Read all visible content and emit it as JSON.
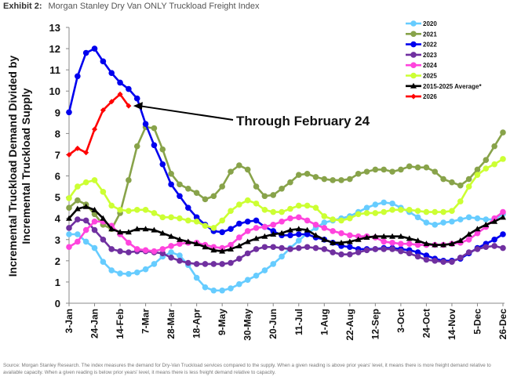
{
  "header": {
    "exhibit": "Exhibit 2:",
    "title": "Morgan Stanley Dry Van ONLY Truckload Freight Index"
  },
  "footer": {
    "source": "Source: Morgan Stanley Research. The index measures the demand for Dry-Van Truckload services compared to the supply. When a given reading is above prior years' level, it means there is more freight demand relative to available capacity. When a given reading is below prior years' level, it means there is less freight demand relative to capacity."
  },
  "chart_data": {
    "type": "line",
    "title": "",
    "xlabel": "",
    "ylabel": "Incremental Truckload Demand Divided by Incremental Truckload Supply",
    "ylabel_lines": [
      "Incremental Truckload Demand Divided by",
      "Incremental Truckload Supply"
    ],
    "ylim": [
      0,
      13
    ],
    "yticks": [
      0,
      1,
      2,
      3,
      4,
      5,
      6,
      7,
      8,
      9,
      10,
      11,
      12,
      13
    ],
    "x_tick_labels": [
      "3-Jan",
      "24-Jan",
      "14-Feb",
      "7-Mar",
      "28-Mar",
      "18-Apr",
      "9-May",
      "30-May",
      "20-Jun",
      "11-Jul",
      "1-Aug",
      "22-Aug",
      "12-Sep",
      "3-Oct",
      "24-Oct",
      "14-Nov",
      "5-Dec",
      "26-Dec"
    ],
    "x_points_per_tick": 3,
    "grid": false,
    "legend_placement": "top-right",
    "annotation": {
      "text": "Through February 24",
      "series": "2026"
    },
    "series": [
      {
        "name": "2020",
        "color": "#66ccff",
        "marker": "circle",
        "values": [
          3.25,
          3.25,
          2.9,
          2.6,
          1.95,
          1.55,
          1.4,
          1.38,
          1.45,
          1.6,
          1.85,
          2.2,
          2.4,
          2.25,
          1.8,
          1.2,
          0.75,
          0.6,
          0.6,
          0.7,
          0.9,
          1.1,
          1.3,
          1.55,
          1.85,
          2.2,
          2.6,
          2.95,
          3.3,
          3.55,
          3.8,
          3.9,
          4.0,
          4.1,
          4.3,
          4.5,
          4.65,
          4.75,
          4.7,
          4.5,
          4.3,
          4.05,
          3.8,
          3.7,
          3.8,
          3.85,
          3.95,
          4.05,
          4.0,
          3.95,
          3.95,
          4.2
        ]
      },
      {
        "name": "2021",
        "color": "#88a34a",
        "marker": "circle",
        "values": [
          4.5,
          4.85,
          4.65,
          4.2,
          3.7,
          3.5,
          4.25,
          5.8,
          7.4,
          8.3,
          8.25,
          7.25,
          6.1,
          5.6,
          5.4,
          5.2,
          4.9,
          5.05,
          5.5,
          6.2,
          6.5,
          6.3,
          5.5,
          5.05,
          5.1,
          5.4,
          5.7,
          6.05,
          6.1,
          5.95,
          5.85,
          5.8,
          5.8,
          5.85,
          6.1,
          6.2,
          6.3,
          6.3,
          6.2,
          6.3,
          6.45,
          6.4,
          6.4,
          6.2,
          5.85,
          5.7,
          5.55,
          5.85,
          6.3,
          6.75,
          7.4,
          8.05
        ]
      },
      {
        "name": "2022",
        "color": "#0000ee",
        "marker": "circle",
        "values": [
          9.0,
          10.7,
          11.8,
          12.0,
          11.4,
          10.85,
          10.4,
          10.1,
          9.65,
          8.45,
          7.45,
          6.55,
          5.6,
          5.05,
          4.5,
          4.05,
          3.7,
          3.4,
          3.35,
          3.5,
          3.75,
          3.85,
          3.9,
          3.6,
          3.4,
          3.2,
          3.2,
          3.25,
          3.25,
          3.1,
          3.0,
          2.85,
          2.7,
          2.65,
          2.55,
          2.55,
          2.55,
          2.6,
          2.6,
          2.55,
          2.5,
          2.4,
          2.25,
          2.1,
          2.0,
          2.0,
          2.1,
          2.35,
          2.6,
          2.8,
          3.0,
          3.25
        ]
      },
      {
        "name": "2023",
        "color": "#7030a0",
        "marker": "circle",
        "values": [
          3.55,
          3.95,
          3.9,
          3.45,
          3.0,
          2.55,
          2.45,
          2.4,
          2.45,
          2.45,
          2.4,
          2.35,
          2.15,
          2.0,
          1.9,
          1.85,
          1.85,
          1.85,
          1.85,
          1.9,
          2.1,
          2.35,
          2.55,
          2.65,
          2.65,
          2.6,
          2.55,
          2.6,
          2.65,
          2.6,
          2.55,
          2.4,
          2.3,
          2.3,
          2.4,
          2.5,
          2.55,
          2.55,
          2.55,
          2.45,
          2.35,
          2.2,
          2.05,
          2.0,
          1.95,
          1.95,
          2.15,
          2.4,
          2.55,
          2.65,
          2.7,
          2.6
        ]
      },
      {
        "name": "2024",
        "color": "#ff44dd",
        "marker": "circle",
        "values": [
          2.65,
          2.9,
          3.45,
          3.85,
          3.85,
          3.65,
          3.25,
          2.85,
          2.55,
          2.5,
          2.45,
          2.55,
          2.7,
          2.8,
          2.85,
          2.85,
          2.75,
          2.65,
          2.6,
          2.75,
          3.1,
          3.4,
          3.55,
          3.6,
          3.7,
          3.85,
          4.0,
          4.05,
          3.9,
          3.7,
          3.55,
          3.4,
          3.3,
          3.2,
          3.15,
          3.15,
          3.1,
          2.9,
          2.85,
          2.8,
          2.8,
          2.75,
          2.75,
          2.75,
          2.75,
          2.8,
          2.85,
          3.0,
          3.3,
          3.6,
          4.0,
          4.3
        ]
      },
      {
        "name": "2025",
        "color": "#ccff33",
        "marker": "circle",
        "values": [
          4.95,
          5.5,
          5.7,
          5.8,
          5.25,
          4.6,
          4.4,
          4.35,
          4.4,
          4.4,
          4.25,
          4.05,
          4.05,
          4.0,
          3.9,
          3.85,
          3.65,
          3.55,
          3.9,
          4.35,
          4.65,
          4.85,
          4.7,
          4.4,
          4.3,
          4.3,
          4.45,
          4.6,
          4.6,
          4.5,
          4.1,
          3.95,
          3.9,
          4.0,
          4.2,
          4.25,
          4.25,
          4.3,
          4.4,
          4.4,
          4.4,
          4.35,
          4.3,
          4.3,
          4.3,
          4.35,
          4.8,
          5.5,
          6.05,
          6.35,
          6.55,
          6.8
        ]
      },
      {
        "name": "2015-2025 Average*",
        "color": "#000000",
        "marker": "triangle",
        "values": [
          4.0,
          4.45,
          4.55,
          4.4,
          4.0,
          3.5,
          3.35,
          3.35,
          3.5,
          3.5,
          3.45,
          3.3,
          3.15,
          3.0,
          2.9,
          2.8,
          2.65,
          2.5,
          2.45,
          2.55,
          2.7,
          2.9,
          3.05,
          3.15,
          3.25,
          3.3,
          3.45,
          3.5,
          3.45,
          3.2,
          3.0,
          2.85,
          2.85,
          2.9,
          3.0,
          3.1,
          3.15,
          3.15,
          3.15,
          3.15,
          3.05,
          2.95,
          2.8,
          2.75,
          2.75,
          2.8,
          2.95,
          3.25,
          3.5,
          3.7,
          3.85,
          4.05
        ]
      },
      {
        "name": "2026",
        "color": "#ff0000",
        "marker": "diamond",
        "values": [
          7.0,
          7.3,
          7.1,
          8.2,
          9.1,
          9.5,
          9.85,
          9.3
        ]
      }
    ]
  }
}
